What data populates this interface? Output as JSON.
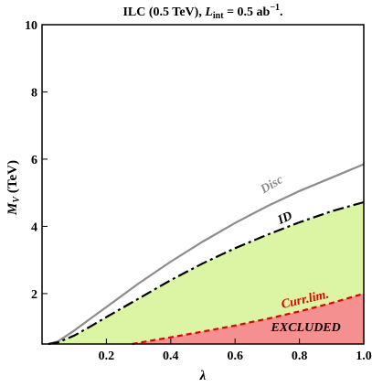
{
  "chart_data": {
    "type": "line",
    "title_parts": {
      "prefix": "ILC (0.5 TeV),  ",
      "sym": "L",
      "sub": "int",
      "mid": " = 0.5 ab",
      "sup": "−1",
      "end": "."
    },
    "xlabel": "λ",
    "ylabel_parts": {
      "sym": "M",
      "sub": "V",
      "unit": " (TeV)"
    },
    "xlim": [
      0.0,
      1.0
    ],
    "ylim": [
      0.5,
      10
    ],
    "x_ticks": [
      {
        "v": 0.2,
        "label": "0.2"
      },
      {
        "v": 0.4,
        "label": "0.4"
      },
      {
        "v": 0.6,
        "label": "0.6"
      },
      {
        "v": 0.8,
        "label": "0.8"
      },
      {
        "v": 1.0,
        "label": "1.0"
      }
    ],
    "y_ticks": [
      {
        "v": 2,
        "label": "2"
      },
      {
        "v": 4,
        "label": "4"
      },
      {
        "v": 6,
        "label": "6"
      },
      {
        "v": 8,
        "label": "8"
      },
      {
        "v": 10,
        "label": "10"
      }
    ],
    "grid": false,
    "series": [
      {
        "name": "Disc",
        "style": "solid",
        "color": "#8c8c8c",
        "x": [
          0.02,
          0.05,
          0.1,
          0.15,
          0.2,
          0.3,
          0.4,
          0.5,
          0.6,
          0.7,
          0.8,
          0.9,
          1.0
        ],
        "y": [
          0.5,
          0.58,
          0.9,
          1.25,
          1.6,
          2.3,
          2.95,
          3.55,
          4.1,
          4.6,
          5.05,
          5.45,
          5.85
        ]
      },
      {
        "name": "ID",
        "style": "dash-dot",
        "color": "#000000",
        "fill": "#dcf5a5",
        "x": [
          0.02,
          0.05,
          0.1,
          0.15,
          0.2,
          0.3,
          0.4,
          0.5,
          0.6,
          0.7,
          0.8,
          0.9,
          1.0
        ],
        "y": [
          0.5,
          0.55,
          0.75,
          1.02,
          1.3,
          1.85,
          2.4,
          2.9,
          3.35,
          3.75,
          4.12,
          4.45,
          4.72
        ]
      },
      {
        "name": "Curr.lim.",
        "style": "dashed",
        "color": "#e00000",
        "fill": "#f59090",
        "x": [
          0.28,
          0.35,
          0.4,
          0.5,
          0.6,
          0.7,
          0.8,
          0.9,
          1.0
        ],
        "y": [
          0.5,
          0.62,
          0.7,
          0.87,
          1.05,
          1.25,
          1.47,
          1.72,
          2.0
        ]
      }
    ],
    "annotations": [
      {
        "text": "Disc",
        "x": 0.72,
        "y": 5.15,
        "angle": -31,
        "color": "#8c8c8c"
      },
      {
        "text": "ID",
        "x": 0.76,
        "y": 4.15,
        "angle": -24,
        "color": "#000000"
      },
      {
        "text": "Curr.lim.",
        "x": 0.82,
        "y": 1.72,
        "angle": -13,
        "color": "#e00000"
      },
      {
        "text": "EXCLUDED",
        "x": 0.82,
        "y": 0.88,
        "angle": 0,
        "color": "#000000"
      }
    ]
  }
}
